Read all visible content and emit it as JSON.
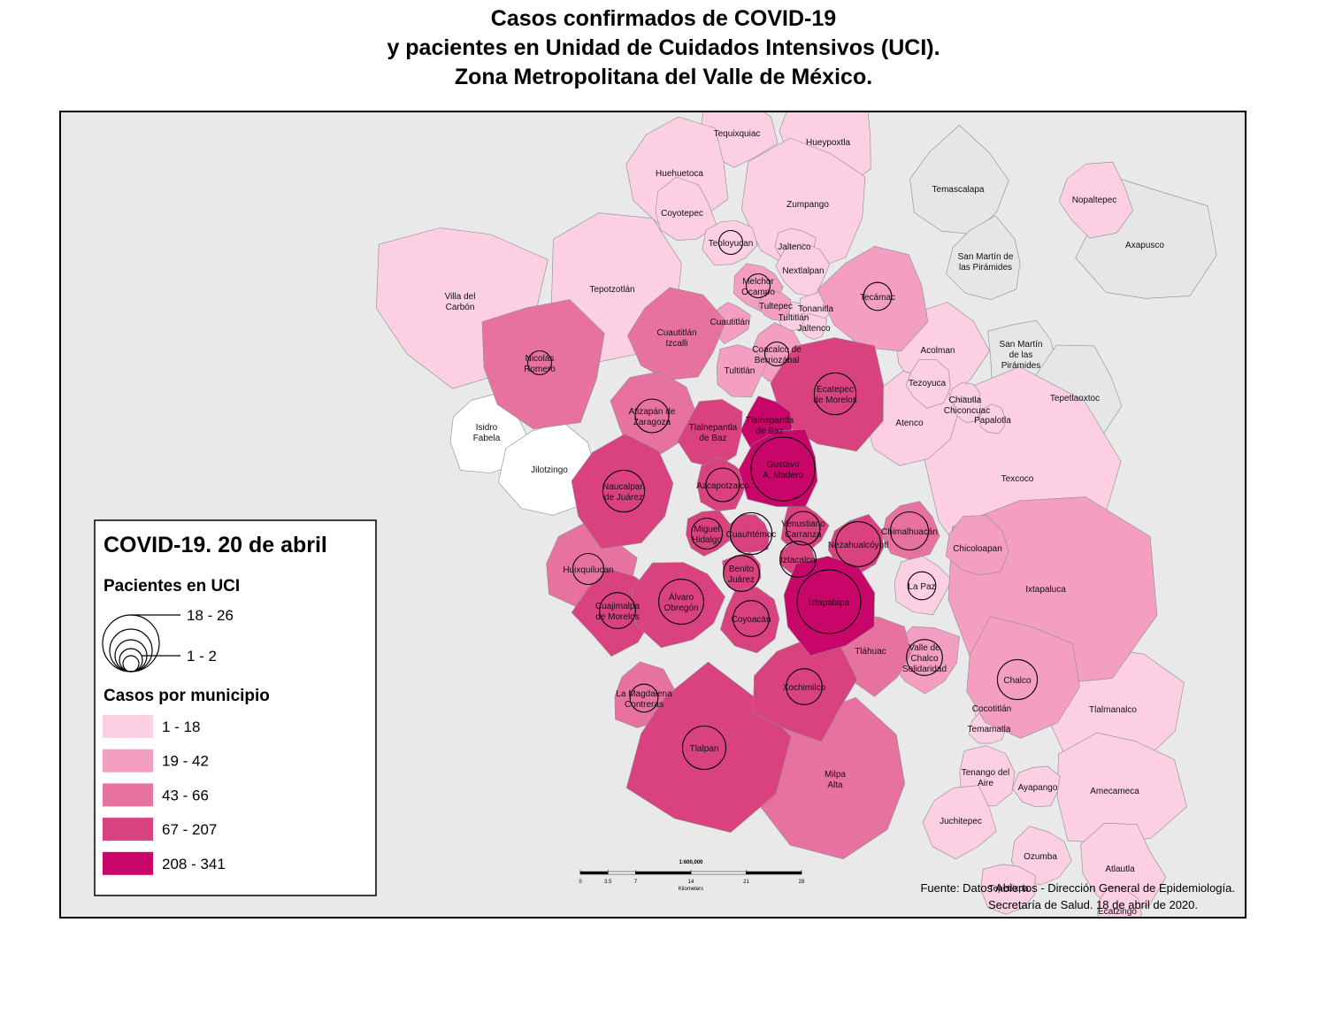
{
  "header": {
    "title_lines": [
      "Casos confirmados de COVID-19",
      "y pacientes en Unidad de Cuidados Intensivos (UCI).",
      "Zona Metropolitana del Valle de México."
    ]
  },
  "legend": {
    "title": "COVID-19. 20 de abril",
    "uci_heading": "Pacientes en UCI",
    "uci_max": "18 - 26",
    "uci_min": "1 - 2",
    "cases_heading": "Casos por municipio",
    "classes": [
      {
        "label": "1 - 18",
        "color": "#fccfe3"
      },
      {
        "label": "19 - 42",
        "color": "#f49ec1"
      },
      {
        "label": "43 - 66",
        "color": "#e8729f"
      },
      {
        "label": "67 - 207",
        "color": "#d9427f"
      },
      {
        "label": "208 - 341",
        "color": "#c8066a"
      }
    ]
  },
  "scale_bar": {
    "ratio": "1:600,000",
    "ticks": [
      0,
      3.5,
      7,
      14,
      21,
      28
    ],
    "unit": "Kilometers"
  },
  "source": {
    "lines": [
      "Fuente: Datos Abiertos - Dirección General de Epidemiología.",
      "Secretaría de Salud. 18 de abril de 2020."
    ]
  },
  "municipalities": [
    {
      "lines": [
        "Temascalapa"
      ],
      "color": "#e6e6e6"
    },
    {
      "lines": [
        "Axapusco"
      ],
      "color": "#e6e6e6"
    },
    {
      "lines": [
        "San Martín de",
        "las Pirámides"
      ],
      "color": "#e6e6e6"
    },
    {
      "lines": [
        "San Martín",
        "de las",
        "Pirámides"
      ],
      "color": "#e6e6e6"
    },
    {
      "lines": [
        "Tepetlaoxtoc"
      ],
      "color": "#e6e6e6"
    },
    {
      "lines": [
        "Isidro",
        "Fabela"
      ],
      "color": "#ffffff"
    },
    {
      "lines": [
        "Jilotzingo"
      ],
      "color": "#ffffff"
    },
    {
      "lines": [
        "Villa del",
        "Carbón"
      ],
      "color": "#fccfe3"
    },
    {
      "lines": [
        "Tepotzotlán"
      ],
      "color": "#fccfe3"
    },
    {
      "lines": [
        "Hueypoxtla"
      ],
      "color": "#fccfe3"
    },
    {
      "lines": [
        "Tequixquiac"
      ],
      "color": "#fccfe3"
    },
    {
      "lines": [
        "Huehuetoca"
      ],
      "color": "#fccfe3"
    },
    {
      "lines": [
        "Zumpango"
      ],
      "color": "#fccfe3"
    },
    {
      "lines": [
        "Coyotepec"
      ],
      "color": "#fccfe3"
    },
    {
      "lines": [
        "Nopaltepec"
      ],
      "color": "#fccfe3"
    },
    {
      "lines": [
        "Texcoco"
      ],
      "color": "#fccfe3"
    },
    {
      "lines": [
        "Acolman"
      ],
      "color": "#fccfe3"
    },
    {
      "lines": [
        "Atenco"
      ],
      "color": "#fccfe3"
    },
    {
      "lines": [
        "Tezoyuca"
      ],
      "color": "#fccfe3"
    },
    {
      "lines": [
        "Chiautla"
      ],
      "color": "#fccfe3"
    },
    {
      "lines": [
        "Chiconcuac"
      ],
      "color": "#fccfe3"
    },
    {
      "lines": [
        "Papalotla"
      ],
      "color": "#fccfe3"
    },
    {
      "lines": [
        "Teoloyucan"
      ],
      "color": "#fccfe3",
      "uci": 1
    },
    {
      "lines": [
        "Jaltenco"
      ],
      "color": "#fccfe3"
    },
    {
      "lines": [
        "Nextlalpan"
      ],
      "color": "#fccfe3"
    },
    {
      "lines": [
        "Tonanitla"
      ],
      "color": "#fccfe3"
    },
    {
      "lines": [
        "Tultitlán"
      ],
      "color": "#fccfe3"
    },
    {
      "lines": [
        "Jaltenco"
      ],
      "color": "#fccfe3"
    },
    {
      "lines": [
        "La Paz"
      ],
      "color": "#fccfe3",
      "uci": 2
    },
    {
      "lines": [
        "Tlalmanalco"
      ],
      "color": "#fccfe3"
    },
    {
      "lines": [
        "Amecameca"
      ],
      "color": "#fccfe3"
    },
    {
      "lines": [
        "Cocotitlán"
      ],
      "color": "#fccfe3"
    },
    {
      "lines": [
        "Temamatla"
      ],
      "color": "#fccfe3"
    },
    {
      "lines": [
        "Tenango del",
        "Aire"
      ],
      "color": "#fccfe3"
    },
    {
      "lines": [
        "Ayapango"
      ],
      "color": "#fccfe3"
    },
    {
      "lines": [
        "Juchitepec"
      ],
      "color": "#fccfe3"
    },
    {
      "lines": [
        "Ozumba"
      ],
      "color": "#fccfe3"
    },
    {
      "lines": [
        "Atlautla"
      ],
      "color": "#fccfe3"
    },
    {
      "lines": [
        "Tepetlixpa"
      ],
      "color": "#fccfe3"
    },
    {
      "lines": [
        "Ecatzingo"
      ],
      "color": "#fccfe3"
    },
    {
      "lines": [
        "Tecámac"
      ],
      "color": "#f49ec1",
      "uci": 2
    },
    {
      "lines": [
        "Ixtapaluca"
      ],
      "color": "#f49ec1"
    },
    {
      "lines": [
        "Chicoloapan"
      ],
      "color": "#f49ec1"
    },
    {
      "lines": [
        "Valle de",
        "Chalco",
        "Solidaridad"
      ],
      "color": "#f49ec1",
      "uci": 5
    },
    {
      "lines": [
        "Chalco"
      ],
      "color": "#f49ec1",
      "uci": 7
    },
    {
      "lines": [
        "Melchor",
        "Ocampo"
      ],
      "color": "#f49ec1",
      "uci": 1
    },
    {
      "lines": [
        "Tultepec"
      ],
      "color": "#f49ec1"
    },
    {
      "lines": [
        "Cuautitlán"
      ],
      "color": "#f49ec1"
    },
    {
      "lines": [
        "Coacalco de",
        "Berriozábal"
      ],
      "color": "#f49ec1",
      "uci": 1
    },
    {
      "lines": [
        "Tultitlán"
      ],
      "color": "#f49ec1"
    },
    {
      "lines": [
        "Nicolás",
        "Romero"
      ],
      "color": "#e8729f",
      "uci": 1
    },
    {
      "lines": [
        "Cuautitlán",
        "Izcalli"
      ],
      "color": "#e8729f"
    },
    {
      "lines": [
        "Atizapán de",
        "Zaragoza"
      ],
      "color": "#e8729f",
      "uci": 4
    },
    {
      "lines": [
        "Huixquilucan"
      ],
      "color": "#e8729f",
      "uci": 3
    },
    {
      "lines": [
        "La Magdalena",
        "Contreras"
      ],
      "color": "#e8729f",
      "uci": 2
    },
    {
      "lines": [
        "Chimalhuacán"
      ],
      "color": "#e8729f",
      "uci": 6
    },
    {
      "lines": [
        "Tláhuac"
      ],
      "color": "#e8729f"
    },
    {
      "lines": [
        "Milpa",
        "Alta"
      ],
      "color": "#e8729f"
    },
    {
      "lines": [
        "Ecatepec",
        "de Morelos"
      ],
      "color": "#d9427f",
      "uci": 8
    },
    {
      "lines": [
        "Tlalnepantla",
        "de Baz"
      ],
      "color": "#d9427f"
    },
    {
      "lines": [
        "Naucalpan",
        "de Juárez"
      ],
      "color": "#d9427f",
      "uci": 8
    },
    {
      "lines": [
        "Cuajimalpa",
        "de Morelos"
      ],
      "color": "#d9427f",
      "uci": 5
    },
    {
      "lines": [
        "Tlalpan"
      ],
      "color": "#d9427f",
      "uci": 9
    },
    {
      "lines": [
        "Xochimilco"
      ],
      "color": "#d9427f",
      "uci": 5
    },
    {
      "lines": [
        "Álvaro",
        "Obregón"
      ],
      "color": "#d9427f",
      "uci": 10
    },
    {
      "lines": [
        "Azcapotzalco"
      ],
      "color": "#d9427f",
      "uci": 4
    },
    {
      "lines": [
        "Miguel",
        "Hidalgo"
      ],
      "color": "#d9427f",
      "uci": 3
    },
    {
      "lines": [
        "Cuauhtémoc"
      ],
      "color": "#d9427f",
      "uci": 8
    },
    {
      "lines": [
        "Venustiano",
        "Carranza"
      ],
      "color": "#d9427f",
      "uci": 4
    },
    {
      "lines": [
        "Nezahualcóyotl"
      ],
      "color": "#d9427f",
      "uci": 10
    },
    {
      "lines": [
        "Iztacalco"
      ],
      "color": "#d9427f",
      "uci": 5
    },
    {
      "lines": [
        "Benito",
        "Juárez"
      ],
      "color": "#d9427f",
      "uci": 5
    },
    {
      "lines": [
        "Coyoacán"
      ],
      "color": "#d9427f",
      "uci": 5
    },
    {
      "lines": [
        "Tlalnepantla",
        "de Baz"
      ],
      "color": "#c8066a"
    },
    {
      "lines": [
        "Gustavo",
        "A. Madero"
      ],
      "color": "#c8066a",
      "uci": 26
    },
    {
      "lines": [
        "Iztapalapa"
      ],
      "color": "#c8066a",
      "uci": 26
    }
  ]
}
